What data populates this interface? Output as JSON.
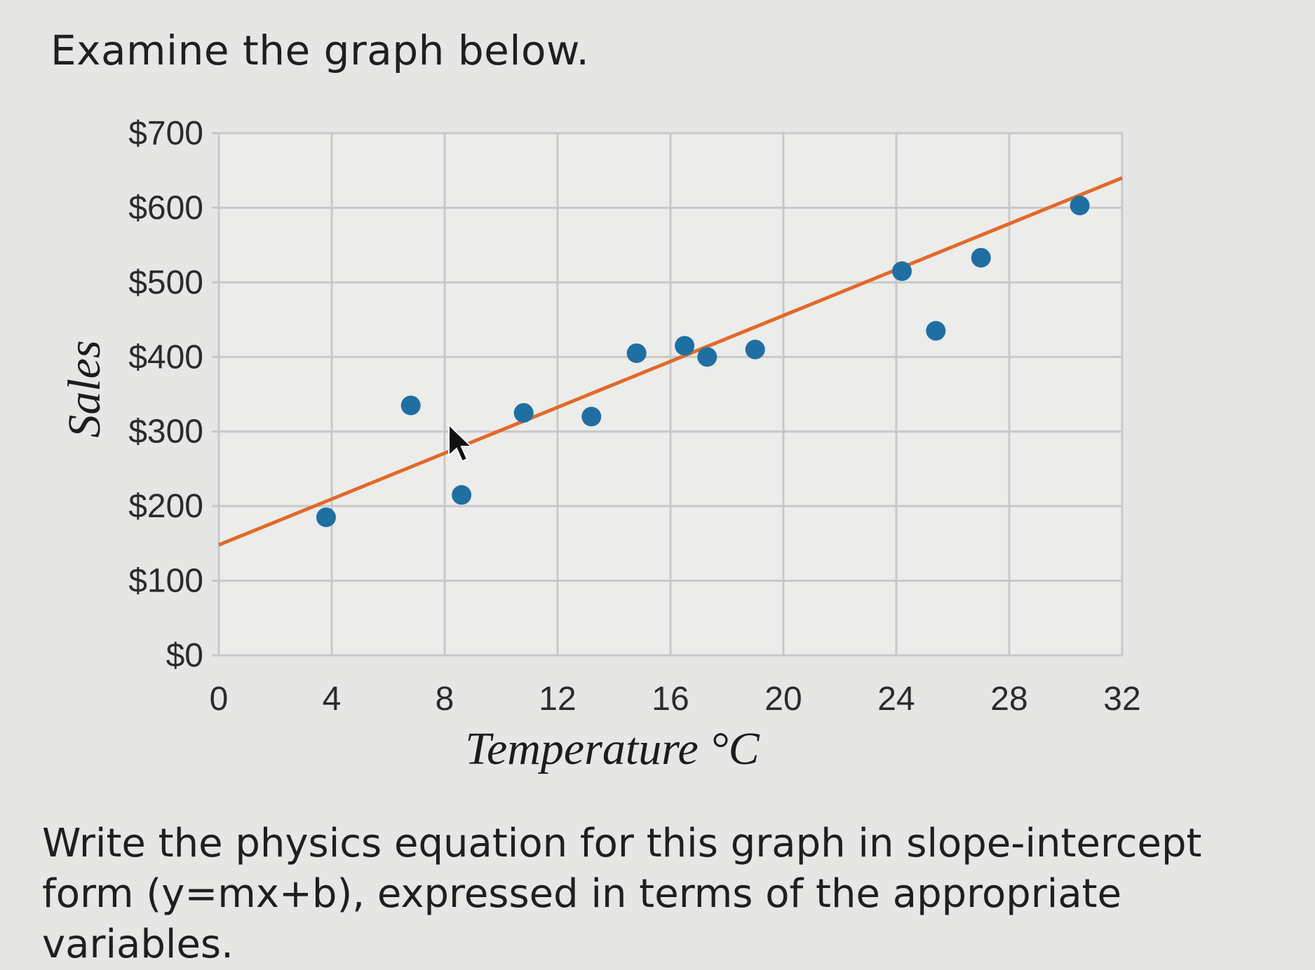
{
  "prompt": "Examine the graph below.",
  "question": "Write the physics equation for this graph in slope-intercept form (y=mx+b), expressed in terms of the appropriate variables.",
  "colors": {
    "point": "#1f6fa3",
    "trendline": "#e06a2a",
    "grid": "#c8c8c8",
    "plot_bg": "#ececea"
  },
  "chart_data": {
    "type": "scatter",
    "title": "",
    "xlabel": "Temperature °C",
    "ylabel": "Sales",
    "xlim": [
      0,
      32
    ],
    "ylim": [
      0,
      700
    ],
    "x_ticks": [
      0,
      4,
      8,
      12,
      16,
      20,
      24,
      28,
      32
    ],
    "y_ticks": [
      0,
      100,
      200,
      300,
      400,
      500,
      600,
      700
    ],
    "y_tick_labels": [
      "$0",
      "$100",
      "$200",
      "$300",
      "$400",
      "$500",
      "$600",
      "$700"
    ],
    "grid": true,
    "points": [
      {
        "x": 3.8,
        "y": 185
      },
      {
        "x": 6.8,
        "y": 335
      },
      {
        "x": 8.6,
        "y": 215
      },
      {
        "x": 10.8,
        "y": 325
      },
      {
        "x": 13.2,
        "y": 320
      },
      {
        "x": 14.8,
        "y": 405
      },
      {
        "x": 16.5,
        "y": 415
      },
      {
        "x": 17.3,
        "y": 400
      },
      {
        "x": 19.0,
        "y": 410
      },
      {
        "x": 24.2,
        "y": 515
      },
      {
        "x": 25.4,
        "y": 435
      },
      {
        "x": 27.0,
        "y": 533
      },
      {
        "x": 30.5,
        "y": 603
      }
    ],
    "trendline": {
      "x": [
        0,
        32
      ],
      "y": [
        148,
        640
      ]
    }
  }
}
